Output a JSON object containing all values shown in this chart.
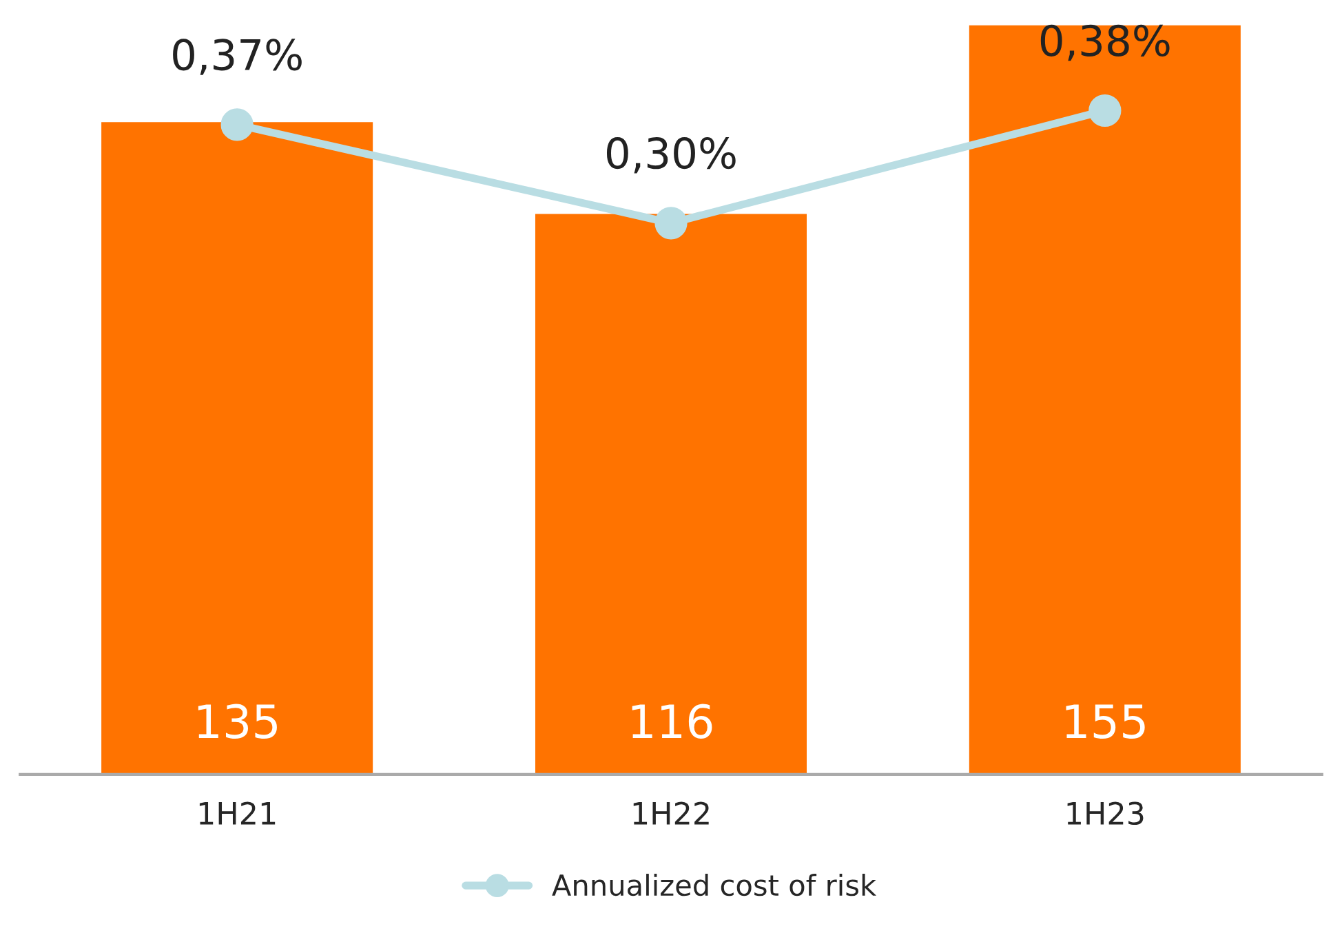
{
  "chart_data": {
    "type": "bar",
    "categories": [
      "1H21",
      "1H22",
      "1H23"
    ],
    "series": [
      {
        "color": "#ff7300",
        "values": [
          135,
          116,
          155
        ],
        "value_labels": [
          "135",
          "116",
          "155"
        ]
      },
      {
        "type": "line",
        "name": "Annualized cost of risk",
        "color": "#b9dde3",
        "axis": "y2",
        "values": [
          0.37,
          0.3,
          0.38
        ],
        "value_labels": [
          "0,37%",
          "0,30%",
          "0,38%"
        ]
      }
    ],
    "legend": "bottom",
    "grid": false,
    "marker": "circle",
    "line_style": "solid"
  }
}
